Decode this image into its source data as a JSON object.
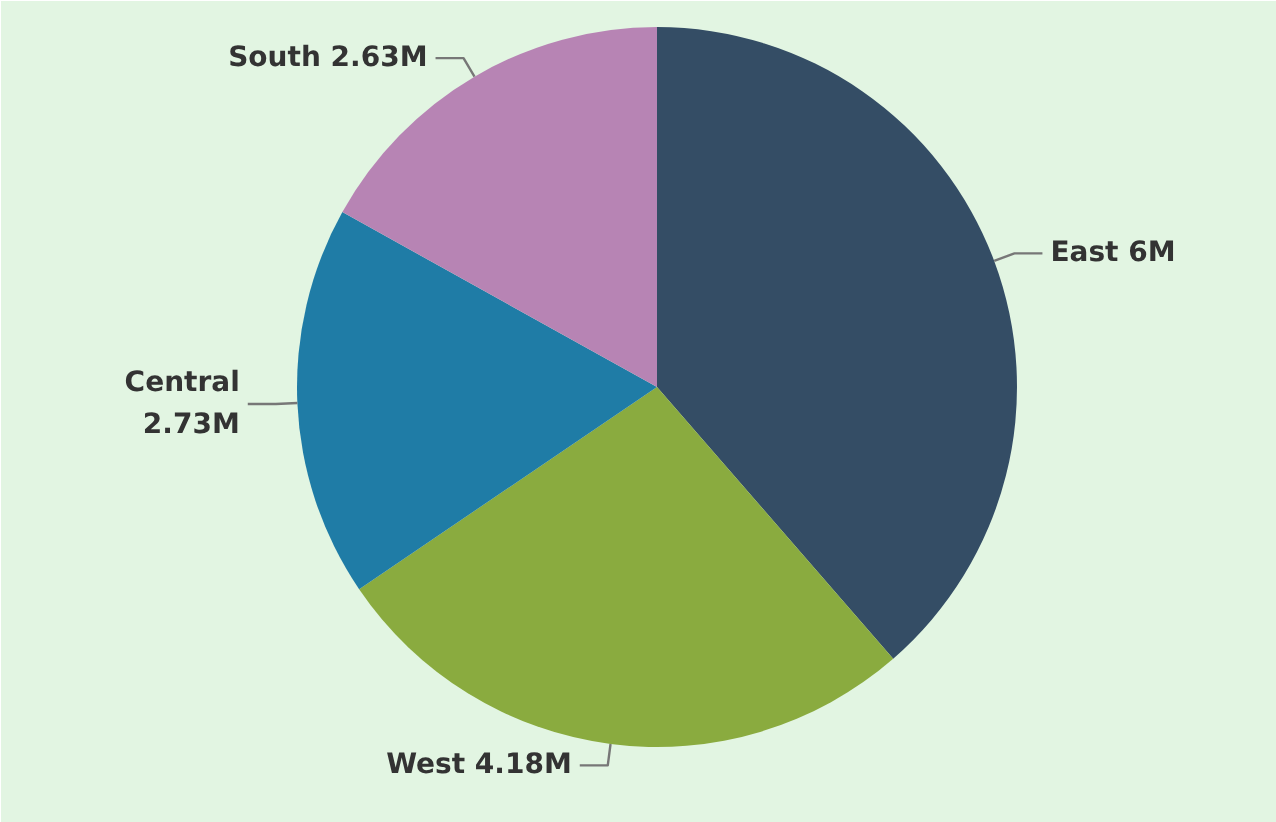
{
  "chart_data": {
    "type": "pie",
    "categories": [
      "East",
      "West",
      "Central",
      "South"
    ],
    "values": [
      6,
      4.18,
      2.73,
      2.63
    ],
    "value_labels": [
      "6M",
      "4.18M",
      "2.73M",
      "2.63M"
    ],
    "colors": [
      "#344d65",
      "#8aab3f",
      "#1f7ca6",
      "#b784b4"
    ],
    "legend": false
  }
}
